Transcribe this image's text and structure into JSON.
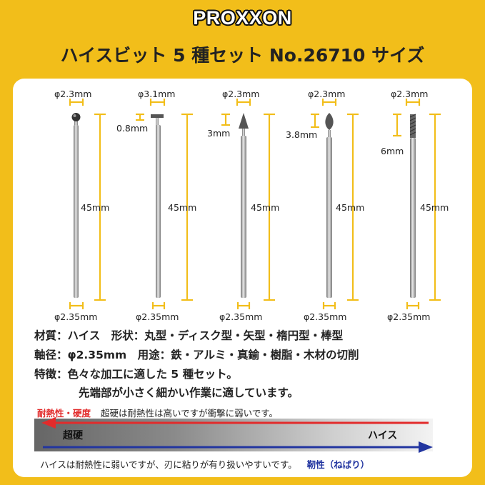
{
  "brand": "PROXXON",
  "title": "ハイスビット 5 種セット No.26710 サイズ",
  "bits": [
    {
      "head_dia": "φ2.3mm",
      "head_len": "",
      "total_len": "45mm",
      "shank_dia": "φ2.35mm"
    },
    {
      "head_dia": "φ3.1mm",
      "head_len": "0.8mm",
      "total_len": "45mm",
      "shank_dia": "φ2.35mm"
    },
    {
      "head_dia": "φ2.3mm",
      "head_len": "3mm",
      "total_len": "45mm",
      "shank_dia": "φ2.35mm"
    },
    {
      "head_dia": "φ2.3mm",
      "head_len": "3.8mm",
      "total_len": "45mm",
      "shank_dia": "φ2.35mm"
    },
    {
      "head_dia": "φ2.3mm",
      "head_len": "6mm",
      "total_len": "45mm",
      "shank_dia": "φ2.35mm"
    }
  ],
  "specs": {
    "line1": "材質：ハイス　形状：丸型・ディスク型・矢型・楕円型・棒型",
    "line2": "軸径：φ2.35mm　用途：鉄・アルミ・真鍮・樹脂・木材の切削",
    "line3": "特徴：色々な加工に適した 5 種セット。",
    "line4": "先端部が小さく細かい作業に適しています。"
  },
  "comparison": {
    "heat_label": "耐熱性・硬度",
    "heat_note": "超硬は耐熱性は高いですが衝撃に弱いです。",
    "left_label": "超硬",
    "right_label": "ハイス",
    "bottom_note": "ハイスは耐熱性に弱いですが、刃に粘りが有り扱いやすいです。",
    "tough_label": "靭性（ねばり）",
    "red_color": "#E22B2B",
    "blue_color": "#2235A0"
  }
}
